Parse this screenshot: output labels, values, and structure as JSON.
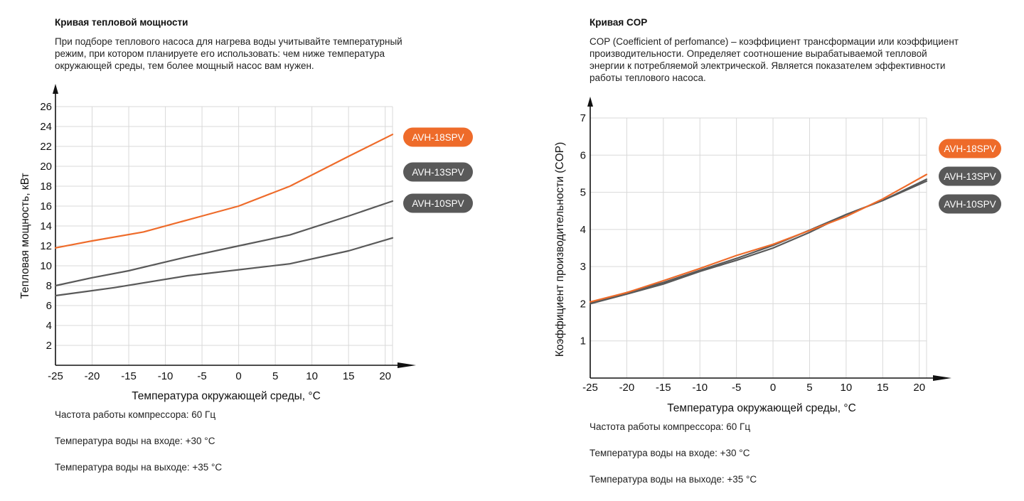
{
  "colors": {
    "orange": "#EE6B2A",
    "gray": "#595959",
    "grid": "#d9d9d9",
    "axis": "#111111"
  },
  "chart_data": [
    {
      "type": "line",
      "title": "Кривая тепловой мощности",
      "description": "При подборе теплового насоса для нагрева воды учитывайте температурный\nрежим, при котором планируете его использовать: чем ниже температура\nокружающей среды, тем более мощный насос вам нужен.",
      "xlabel": "Температура окружающей среды, °С",
      "ylabel": "Тепловая мощность, кВт",
      "xlim": [
        -25,
        21
      ],
      "ylim": [
        0,
        26
      ],
      "xticks": [
        -25,
        -20,
        -15,
        -10,
        -5,
        0,
        5,
        10,
        15,
        20
      ],
      "yticks": [
        2,
        4,
        6,
        8,
        10,
        12,
        14,
        16,
        18,
        20,
        22,
        24,
        26
      ],
      "series": [
        {
          "name": "AVH-18SPV",
          "color": "orange",
          "x": [
            -25,
            -20,
            -13,
            -5,
            0,
            7,
            15,
            21
          ],
          "y": [
            11.8,
            12.5,
            13.4,
            15,
            16,
            18,
            21,
            23.2
          ]
        },
        {
          "name": "AVH-13SPV",
          "color": "gray",
          "x": [
            -25,
            -20,
            -15,
            -7,
            0,
            7,
            15,
            21
          ],
          "y": [
            8,
            8.8,
            9.5,
            10.9,
            12,
            13.1,
            15,
            16.5
          ]
        },
        {
          "name": "AVH-10SPV",
          "color": "gray",
          "x": [
            -25,
            -17,
            -7,
            0,
            7,
            15,
            21
          ],
          "y": [
            7,
            7.8,
            9,
            9.6,
            10.2,
            11.5,
            12.8
          ]
        }
      ],
      "notes": [
        "Частота работы компрессора: 60 Гц",
        "Температура воды на входе: +30 °С",
        "Температура воды на выходе: +35 °С"
      ]
    },
    {
      "type": "line",
      "title": "Кривая COP",
      "description": "COP (Coefficient of perfomance) – коэффициент трансформации или коэффициент\nпроизводительности. Определяет соотношение вырабатываемой тепловой\nэнергии к потребляемой электрической. Является показателем эффективности\nработы теплового насоса.",
      "xlabel": "Температура окружающей среды, °С",
      "ylabel": "Коэффициент производительности (COP)",
      "xlim": [
        -25,
        21
      ],
      "ylim": [
        0,
        7
      ],
      "xticks": [
        -25,
        -20,
        -15,
        -10,
        -5,
        0,
        5,
        10,
        15,
        20
      ],
      "yticks": [
        1,
        2,
        3,
        4,
        5,
        6,
        7
      ],
      "series": [
        {
          "name": "AVH-18SPV",
          "color": "orange",
          "x": [
            -25,
            -20,
            -15,
            -10,
            -5,
            0,
            5,
            10,
            15,
            21
          ],
          "y": [
            2.05,
            2.3,
            2.62,
            2.95,
            3.3,
            3.6,
            3.97,
            4.35,
            4.82,
            5.48
          ]
        },
        {
          "name": "AVH-13SPV",
          "color": "gray",
          "x": [
            -25,
            -20,
            -15,
            -10,
            -5,
            0,
            5,
            10,
            15,
            21
          ],
          "y": [
            2.02,
            2.3,
            2.57,
            2.9,
            3.22,
            3.57,
            3.98,
            4.4,
            4.78,
            5.35
          ]
        },
        {
          "name": "AVH-10SPV",
          "color": "gray",
          "x": [
            -25,
            -20,
            -15,
            -10,
            -5,
            0,
            5,
            10,
            15,
            21
          ],
          "y": [
            2.0,
            2.26,
            2.53,
            2.87,
            3.17,
            3.5,
            3.92,
            4.4,
            4.78,
            5.3
          ]
        }
      ],
      "notes": [
        "Частота работы компрессора: 60 Гц",
        "Температура воды на входе: +30 °С",
        "Температура воды на выходе: +35 °С"
      ]
    }
  ]
}
